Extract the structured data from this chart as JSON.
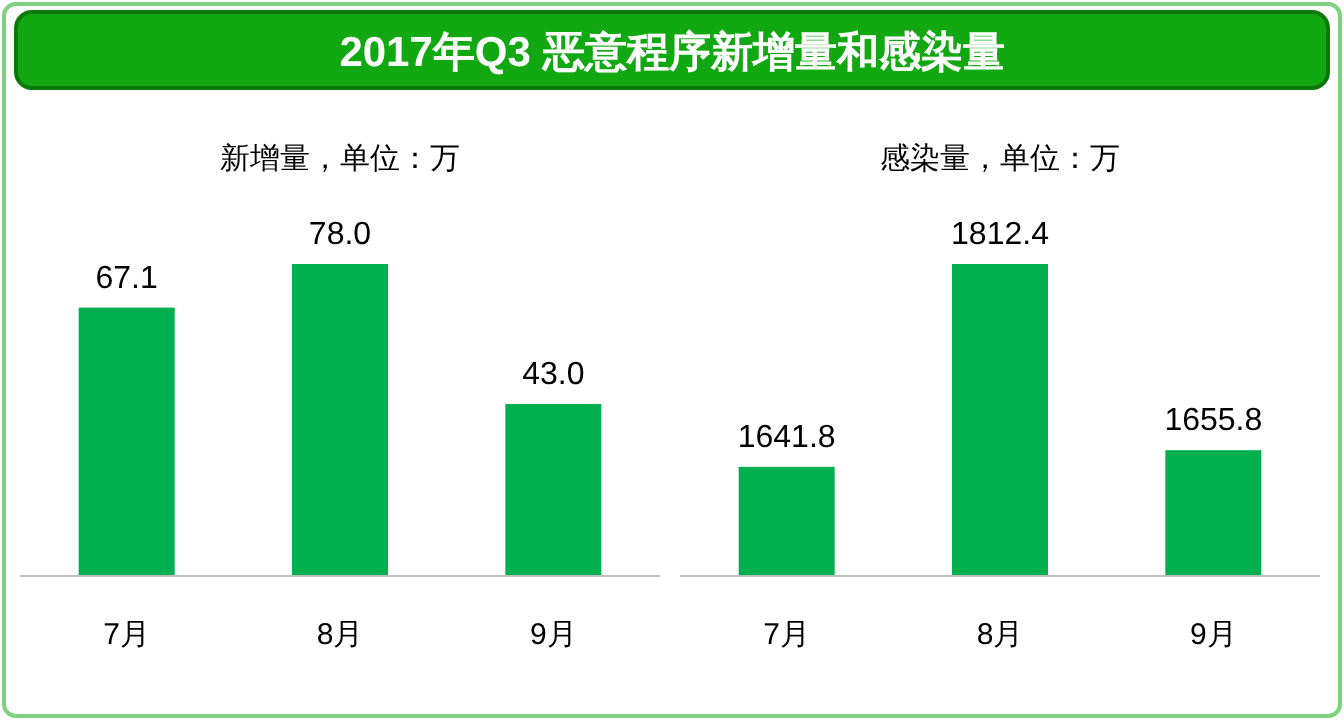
{
  "chart_data": [
    {
      "type": "bar",
      "title": "2017年Q3 恶意程序新增量和感染量",
      "subtitle": "新增量，单位：万",
      "categories": [
        "7月",
        "8月",
        "9月"
      ],
      "values": [
        67.1,
        78.0,
        43.0
      ],
      "value_labels": [
        "67.1",
        "78.0",
        "43.0"
      ],
      "color": "#00b04f",
      "ylim": [
        0,
        78.0
      ],
      "tick_labels": "x"
    },
    {
      "type": "bar",
      "subtitle": "感染量，单位：万",
      "categories": [
        "7月",
        "8月",
        "9月"
      ],
      "values": [
        1641.8,
        1812.4,
        1655.8
      ],
      "value_labels": [
        "1641.8",
        "1812.4",
        "1655.8"
      ],
      "color": "#00b04f",
      "ylim": [
        1550,
        1812.4
      ],
      "tick_labels": "x"
    }
  ]
}
